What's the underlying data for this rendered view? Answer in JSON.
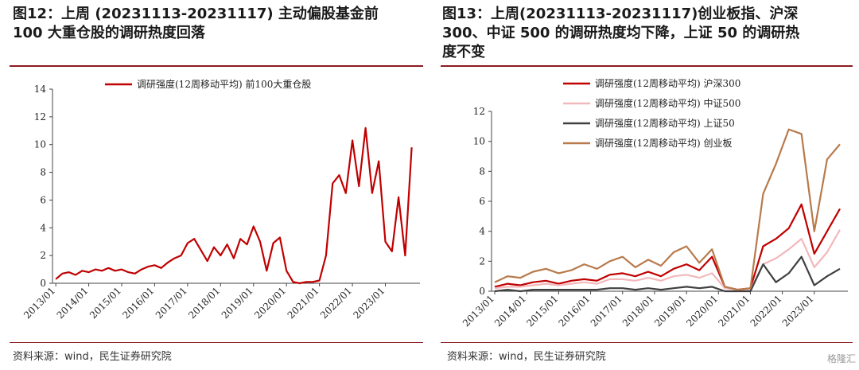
{
  "panels": [
    {
      "title": "图12：上周 (20231113-20231117) 主动偏股基金前\n100 大重仓股的调研热度回落",
      "source": "资料来源：wind，民生证券研究院"
    },
    {
      "title": "图13：上周(20231113-20231117)创业板指、沪深\n300、中证 500 的调研热度均下降，上证 50 的调研热\n度不变",
      "source": "资料来源：wind，民生证券研究院"
    }
  ],
  "watermark": "格隆汇",
  "chart_data": [
    {
      "type": "line",
      "x_ticks": [
        "2013/01",
        "2014/01",
        "2015/01",
        "2016/01",
        "2017/01",
        "2018/01",
        "2019/01",
        "2020/01",
        "2021/01",
        "2022/01",
        "2023/01"
      ],
      "ylim": [
        0,
        14
      ],
      "y_ticks": [
        0,
        2,
        4,
        6,
        8,
        10,
        12,
        14
      ],
      "legend_position": "top-center",
      "series": [
        {
          "name": "调研强度(12周移动平均) 前100大重仓股",
          "color": "#c00000",
          "x": [
            2013.0,
            2013.2,
            2013.4,
            2013.6,
            2013.8,
            2014.0,
            2014.2,
            2014.4,
            2014.6,
            2014.8,
            2015.0,
            2015.2,
            2015.4,
            2015.6,
            2015.8,
            2016.0,
            2016.2,
            2016.4,
            2016.6,
            2016.8,
            2017.0,
            2017.2,
            2017.4,
            2017.6,
            2017.8,
            2018.0,
            2018.2,
            2018.4,
            2018.6,
            2018.8,
            2019.0,
            2019.2,
            2019.4,
            2019.6,
            2019.8,
            2020.0,
            2020.2,
            2020.4,
            2020.6,
            2020.8,
            2021.0,
            2021.2,
            2021.4,
            2021.6,
            2021.8,
            2022.0,
            2022.2,
            2022.4,
            2022.6,
            2022.8,
            2023.0,
            2023.2,
            2023.4,
            2023.6,
            2023.8
          ],
          "y": [
            0.3,
            0.7,
            0.8,
            0.6,
            0.9,
            0.8,
            1.0,
            0.9,
            1.1,
            0.9,
            1.0,
            0.8,
            0.7,
            1.0,
            1.2,
            1.3,
            1.1,
            1.5,
            1.8,
            2.0,
            2.9,
            3.2,
            2.4,
            1.6,
            2.6,
            2.0,
            2.8,
            1.8,
            3.2,
            2.8,
            4.1,
            3.0,
            0.9,
            2.9,
            3.3,
            0.9,
            0.1,
            0.0,
            0.1,
            0.1,
            0.2,
            2.0,
            7.2,
            7.8,
            6.5,
            10.3,
            7.0,
            11.2,
            6.5,
            8.8,
            3.0,
            2.3,
            6.2,
            2.0,
            9.8
          ]
        }
      ]
    },
    {
      "type": "line",
      "x_ticks": [
        "2013/01",
        "2014/01",
        "2015/01",
        "2016/01",
        "2017/01",
        "2018/01",
        "2019/01",
        "2020/01",
        "2021/01",
        "2022/01",
        "2023/01"
      ],
      "ylim": [
        0,
        12
      ],
      "y_ticks": [
        0,
        2,
        4,
        6,
        8,
        10,
        12
      ],
      "legend_position": "top-left",
      "series": [
        {
          "name": "调研强度(12周移动平均) 沪深300",
          "color": "#c00000",
          "x": [
            2013.0,
            2013.4,
            2013.8,
            2014.2,
            2014.6,
            2015.0,
            2015.4,
            2015.8,
            2016.2,
            2016.6,
            2017.0,
            2017.4,
            2017.8,
            2018.2,
            2018.6,
            2019.0,
            2019.4,
            2019.8,
            2020.2,
            2020.6,
            2021.0,
            2021.4,
            2021.8,
            2022.2,
            2022.6,
            2023.0,
            2023.4,
            2023.8
          ],
          "y": [
            0.3,
            0.5,
            0.4,
            0.6,
            0.7,
            0.5,
            0.7,
            0.8,
            0.7,
            1.1,
            1.2,
            1.0,
            1.3,
            1.0,
            1.5,
            1.8,
            1.4,
            2.3,
            0.3,
            0.1,
            0.2,
            3.0,
            3.5,
            4.2,
            5.8,
            2.5,
            4.0,
            5.5
          ]
        },
        {
          "name": "调研强度(12周移动平均) 中证500",
          "color": "#f2b8bb",
          "x": [
            2013.0,
            2013.4,
            2013.8,
            2014.2,
            2014.6,
            2015.0,
            2015.4,
            2015.8,
            2016.2,
            2016.6,
            2017.0,
            2017.4,
            2017.8,
            2018.2,
            2018.6,
            2019.0,
            2019.4,
            2019.8,
            2020.2,
            2020.6,
            2021.0,
            2021.4,
            2021.8,
            2022.2,
            2022.6,
            2023.0,
            2023.4,
            2023.8
          ],
          "y": [
            0.2,
            0.3,
            0.3,
            0.4,
            0.5,
            0.4,
            0.5,
            0.6,
            0.5,
            0.8,
            0.8,
            0.7,
            0.9,
            0.7,
            1.0,
            1.1,
            0.9,
            1.2,
            0.2,
            0.1,
            0.1,
            1.8,
            2.2,
            2.8,
            3.5,
            1.6,
            2.6,
            4.1
          ]
        },
        {
          "name": "调研强度(12周移动平均) 上证50",
          "color": "#404040",
          "x": [
            2013.0,
            2013.4,
            2013.8,
            2014.2,
            2014.6,
            2015.0,
            2015.4,
            2015.8,
            2016.2,
            2016.6,
            2017.0,
            2017.4,
            2017.8,
            2018.2,
            2018.6,
            2019.0,
            2019.4,
            2019.8,
            2020.2,
            2020.6,
            2021.0,
            2021.4,
            2021.8,
            2022.2,
            2022.6,
            2023.0,
            2023.4,
            2023.8
          ],
          "y": [
            0.0,
            0.1,
            0.0,
            0.1,
            0.1,
            0.1,
            0.1,
            0.1,
            0.1,
            0.2,
            0.2,
            0.1,
            0.2,
            0.1,
            0.2,
            0.3,
            0.2,
            0.3,
            0.0,
            0.0,
            0.0,
            1.8,
            0.6,
            1.2,
            2.3,
            0.4,
            1.0,
            1.5
          ]
        },
        {
          "name": "调研强度(12周移动平均) 创业板",
          "color": "#b87a4b",
          "x": [
            2013.0,
            2013.4,
            2013.8,
            2014.2,
            2014.6,
            2015.0,
            2015.4,
            2015.8,
            2016.2,
            2016.6,
            2017.0,
            2017.4,
            2017.8,
            2018.2,
            2018.6,
            2019.0,
            2019.4,
            2019.8,
            2020.2,
            2020.6,
            2021.0,
            2021.4,
            2021.8,
            2022.2,
            2022.6,
            2023.0,
            2023.4,
            2023.8
          ],
          "y": [
            0.6,
            1.0,
            0.9,
            1.3,
            1.5,
            1.2,
            1.4,
            1.8,
            1.5,
            2.0,
            2.3,
            1.6,
            2.1,
            1.7,
            2.6,
            3.0,
            1.9,
            2.8,
            0.3,
            0.1,
            0.2,
            6.5,
            8.5,
            10.8,
            10.5,
            4.0,
            8.8,
            9.8
          ]
        }
      ]
    }
  ]
}
